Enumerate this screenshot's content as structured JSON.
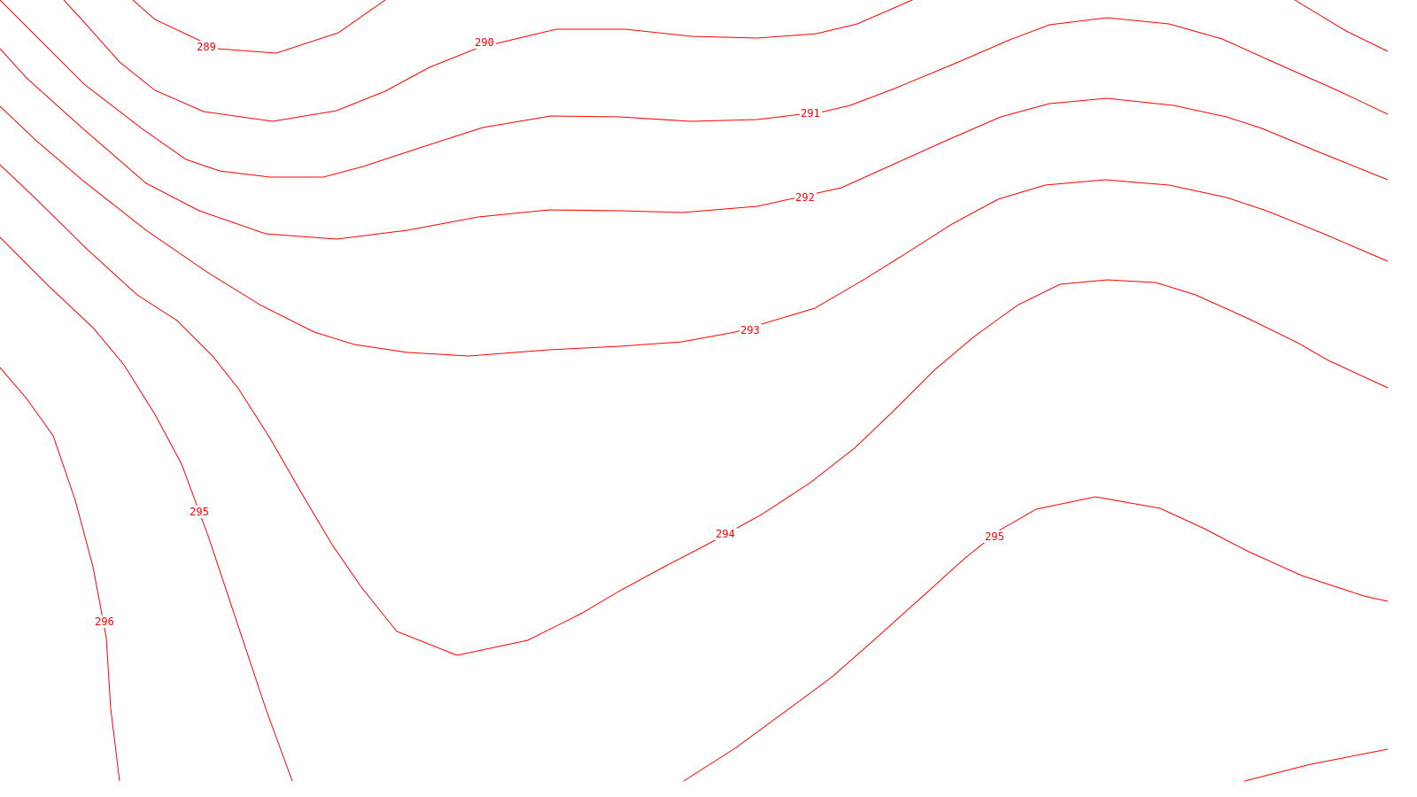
{
  "map": {
    "line_color": "#ff0000",
    "background": "#ffffff",
    "contours": [
      {
        "id": "289",
        "label": "289"
      },
      {
        "id": "290",
        "label": "290"
      },
      {
        "id": "291",
        "label": "291"
      },
      {
        "id": "292",
        "label": "292"
      },
      {
        "id": "293",
        "label": "293"
      },
      {
        "id": "294",
        "label": "294"
      },
      {
        "id": "295",
        "label": "295"
      },
      {
        "id": "296",
        "label": "296"
      }
    ]
  }
}
